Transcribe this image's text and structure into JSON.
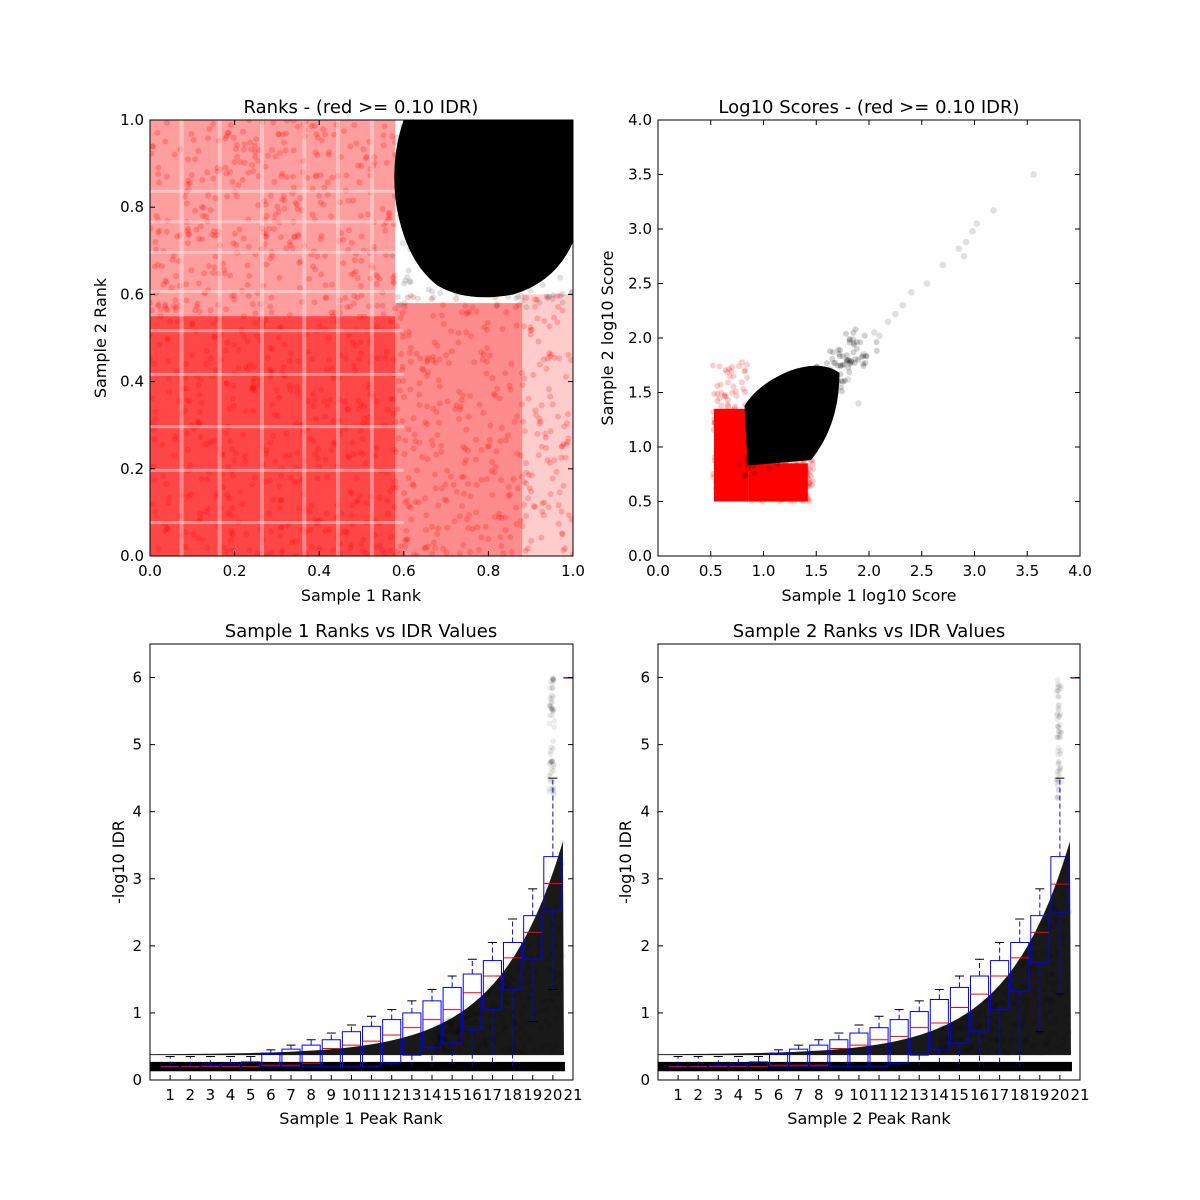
{
  "chart_data": [
    {
      "type": "scatter",
      "title": "Ranks - (red >= 0.10 IDR)",
      "xlabel": "Sample 1 Rank",
      "ylabel": "Sample 2 Rank",
      "xlim": [
        0.0,
        1.0
      ],
      "ylim": [
        0.0,
        1.0
      ],
      "x_ticks": [
        "0.0",
        "0.2",
        "0.4",
        "0.6",
        "0.8",
        "1.0"
      ],
      "y_ticks": [
        "0.0",
        "0.2",
        "0.4",
        "0.6",
        "0.8",
        "1.0"
      ],
      "series": [
        {
          "color": "#ff0000",
          "region": "ranks outside high-confidence corner",
          "x_range": [
            0.0,
            1.0
          ],
          "y_range": [
            0.0,
            1.0
          ]
        },
        {
          "color": "#000000",
          "region": "high rank corner",
          "x_range": [
            0.58,
            1.0
          ],
          "y_range": [
            0.58,
            1.0
          ]
        }
      ],
      "grid": false
    },
    {
      "type": "scatter",
      "title": "Log10 Scores - (red >= 0.10 IDR)",
      "xlabel": "Sample 1 log10 Score",
      "ylabel": "Sample 2 log10 Score",
      "xlim": [
        0.0,
        4.0
      ],
      "ylim": [
        0.0,
        4.0
      ],
      "x_ticks": [
        "0.0",
        "0.5",
        "1.0",
        "1.5",
        "2.0",
        "2.5",
        "3.0",
        "3.5",
        "4.0"
      ],
      "y_ticks": [
        "0.0",
        "0.5",
        "1.0",
        "1.5",
        "2.0",
        "2.5",
        "3.0",
        "3.5",
        "4.0"
      ],
      "series": [
        {
          "color": "#ff0000",
          "region": "low scores",
          "x_range": [
            0.52,
            1.45
          ],
          "y_range": [
            0.5,
            1.8
          ]
        },
        {
          "color": "#000000",
          "region": "high scores",
          "x_range": [
            0.8,
            3.56
          ],
          "y_range": [
            0.82,
            3.5
          ]
        }
      ],
      "outliers": [
        [
          3.56,
          3.5
        ],
        [
          3.18,
          3.17
        ],
        [
          3.02,
          3.05
        ],
        [
          2.98,
          2.98
        ],
        [
          2.92,
          2.88
        ],
        [
          2.85,
          2.82
        ],
        [
          2.9,
          2.75
        ],
        [
          2.7,
          2.67
        ],
        [
          2.55,
          2.5
        ],
        [
          2.4,
          2.42
        ],
        [
          2.32,
          2.3
        ],
        [
          2.25,
          2.22
        ],
        [
          2.18,
          2.15
        ],
        [
          2.05,
          2.05
        ],
        [
          1.95,
          1.85
        ],
        [
          2.1,
          2.02
        ],
        [
          1.9,
          1.4
        ],
        [
          1.8,
          1.62
        ]
      ],
      "grid": false
    },
    {
      "type": "box",
      "title": "Sample 1 Ranks vs IDR Values",
      "xlabel": "Sample 1 Peak Rank",
      "ylabel": "-log10 IDR",
      "categories": [
        "1",
        "2",
        "3",
        "4",
        "5",
        "6",
        "7",
        "8",
        "9",
        "10",
        "11",
        "12",
        "13",
        "14",
        "15",
        "16",
        "17",
        "18",
        "19",
        "20",
        "21"
      ],
      "ylim": [
        0,
        6.5
      ],
      "y_ticks": [
        "0",
        "1",
        "2",
        "3",
        "4",
        "5",
        "6"
      ],
      "boxes": [
        {
          "q1": 0.2,
          "median": 0.2,
          "q3": 0.2,
          "wlo": 0.2,
          "whi": 0.35
        },
        {
          "q1": 0.2,
          "median": 0.2,
          "q3": 0.2,
          "wlo": 0.2,
          "whi": 0.35
        },
        {
          "q1": 0.2,
          "median": 0.2,
          "q3": 0.22,
          "wlo": 0.2,
          "whi": 0.35
        },
        {
          "q1": 0.2,
          "median": 0.2,
          "q3": 0.24,
          "wlo": 0.2,
          "whi": 0.35
        },
        {
          "q1": 0.2,
          "median": 0.2,
          "q3": 0.27,
          "wlo": 0.2,
          "whi": 0.35
        },
        {
          "q1": 0.2,
          "median": 0.22,
          "q3": 0.4,
          "wlo": 0.2,
          "whi": 0.45
        },
        {
          "q1": 0.2,
          "median": 0.22,
          "q3": 0.46,
          "wlo": 0.2,
          "whi": 0.52
        },
        {
          "q1": 0.2,
          "median": 0.25,
          "q3": 0.52,
          "wlo": 0.2,
          "whi": 0.6
        },
        {
          "q1": 0.2,
          "median": 0.47,
          "q3": 0.6,
          "wlo": 0.2,
          "whi": 0.7
        },
        {
          "q1": 0.2,
          "median": 0.52,
          "q3": 0.72,
          "wlo": 0.2,
          "whi": 0.82
        },
        {
          "q1": 0.2,
          "median": 0.58,
          "q3": 0.8,
          "wlo": 0.2,
          "whi": 0.95
        },
        {
          "q1": 0.25,
          "median": 0.67,
          "q3": 0.9,
          "wlo": 0.2,
          "whi": 1.05
        },
        {
          "q1": 0.37,
          "median": 0.78,
          "q3": 1.0,
          "wlo": 0.2,
          "whi": 1.18
        },
        {
          "q1": 0.48,
          "median": 0.9,
          "q3": 1.18,
          "wlo": 0.2,
          "whi": 1.35
        },
        {
          "q1": 0.55,
          "median": 1.05,
          "q3": 1.38,
          "wlo": 0.2,
          "whi": 1.55
        },
        {
          "q1": 0.75,
          "median": 1.3,
          "q3": 1.58,
          "wlo": 0.2,
          "whi": 1.8
        },
        {
          "q1": 1.05,
          "median": 1.55,
          "q3": 1.78,
          "wlo": 0.2,
          "whi": 2.05
        },
        {
          "q1": 1.35,
          "median": 1.82,
          "q3": 2.05,
          "wlo": 0.2,
          "whi": 2.4
        },
        {
          "q1": 1.8,
          "median": 2.2,
          "q3": 2.45,
          "wlo": 0.87,
          "whi": 2.85
        },
        {
          "q1": 2.52,
          "median": 2.93,
          "q3": 3.33,
          "wlo": 1.35,
          "whi": 4.5
        },
        {
          "q1": 6.0,
          "median": 6.0,
          "q3": 6.0,
          "wlo": 6.0,
          "whi": 6.0
        }
      ],
      "grid": false
    },
    {
      "type": "box",
      "title": "Sample 2 Ranks vs IDR Values",
      "xlabel": "Sample 2 Peak Rank",
      "ylabel": "-log10 IDR",
      "categories": [
        "1",
        "2",
        "3",
        "4",
        "5",
        "6",
        "7",
        "8",
        "9",
        "10",
        "11",
        "12",
        "13",
        "14",
        "15",
        "16",
        "17",
        "18",
        "19",
        "20",
        "21"
      ],
      "ylim": [
        0,
        6.5
      ],
      "y_ticks": [
        "0",
        "1",
        "2",
        "3",
        "4",
        "5",
        "6"
      ],
      "boxes": [
        {
          "q1": 0.2,
          "median": 0.2,
          "q3": 0.2,
          "wlo": 0.2,
          "whi": 0.35
        },
        {
          "q1": 0.2,
          "median": 0.2,
          "q3": 0.2,
          "wlo": 0.2,
          "whi": 0.35
        },
        {
          "q1": 0.2,
          "median": 0.2,
          "q3": 0.22,
          "wlo": 0.2,
          "whi": 0.35
        },
        {
          "q1": 0.2,
          "median": 0.2,
          "q3": 0.24,
          "wlo": 0.2,
          "whi": 0.35
        },
        {
          "q1": 0.2,
          "median": 0.2,
          "q3": 0.27,
          "wlo": 0.2,
          "whi": 0.35
        },
        {
          "q1": 0.2,
          "median": 0.22,
          "q3": 0.4,
          "wlo": 0.2,
          "whi": 0.45
        },
        {
          "q1": 0.2,
          "median": 0.22,
          "q3": 0.46,
          "wlo": 0.2,
          "whi": 0.52
        },
        {
          "q1": 0.2,
          "median": 0.22,
          "q3": 0.52,
          "wlo": 0.2,
          "whi": 0.6
        },
        {
          "q1": 0.2,
          "median": 0.47,
          "q3": 0.6,
          "wlo": 0.2,
          "whi": 0.7
        },
        {
          "q1": 0.2,
          "median": 0.52,
          "q3": 0.7,
          "wlo": 0.2,
          "whi": 0.82
        },
        {
          "q1": 0.2,
          "median": 0.6,
          "q3": 0.78,
          "wlo": 0.2,
          "whi": 0.95
        },
        {
          "q1": 0.25,
          "median": 0.65,
          "q3": 0.9,
          "wlo": 0.2,
          "whi": 1.05
        },
        {
          "q1": 0.37,
          "median": 0.78,
          "q3": 1.02,
          "wlo": 0.2,
          "whi": 1.18
        },
        {
          "q1": 0.45,
          "median": 0.85,
          "q3": 1.2,
          "wlo": 0.2,
          "whi": 1.35
        },
        {
          "q1": 0.55,
          "median": 1.08,
          "q3": 1.38,
          "wlo": 0.2,
          "whi": 1.55
        },
        {
          "q1": 0.72,
          "median": 1.28,
          "q3": 1.55,
          "wlo": 0.2,
          "whi": 1.8
        },
        {
          "q1": 1.05,
          "median": 1.55,
          "q3": 1.78,
          "wlo": 0.2,
          "whi": 2.05
        },
        {
          "q1": 1.32,
          "median": 1.82,
          "q3": 2.05,
          "wlo": 0.2,
          "whi": 2.4
        },
        {
          "q1": 1.75,
          "median": 2.2,
          "q3": 2.45,
          "wlo": 0.72,
          "whi": 2.85
        },
        {
          "q1": 2.5,
          "median": 2.92,
          "q3": 3.33,
          "wlo": 1.28,
          "whi": 4.5
        },
        {
          "q1": 6.0,
          "median": 6.0,
          "q3": 6.0,
          "wlo": 6.0,
          "whi": 6.0
        }
      ],
      "grid": false
    }
  ]
}
